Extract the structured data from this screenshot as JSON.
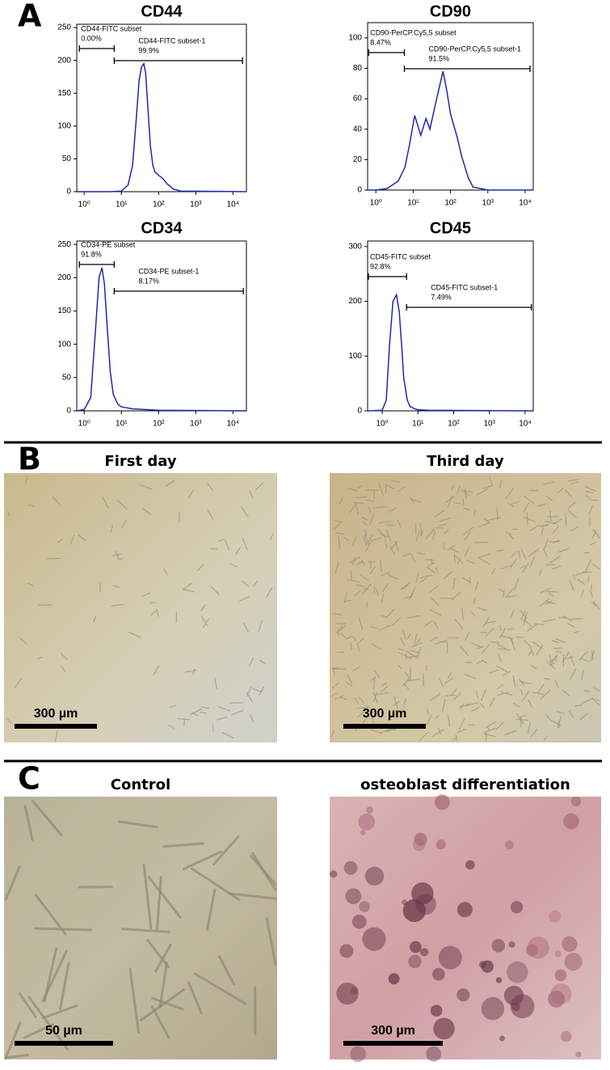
{
  "panel_labels": [
    "A",
    "B",
    "C"
  ],
  "chart_data": [
    {
      "type": "line",
      "title": "CD44",
      "xscale": "log",
      "color": "#1f2aa8",
      "x": [
        0.63,
        5,
        10,
        15,
        20,
        25,
        30,
        35,
        40,
        45,
        50,
        60,
        70,
        80,
        100,
        130,
        170,
        250,
        400,
        23000
      ],
      "values": [
        0,
        0,
        1,
        10,
        40,
        110,
        170,
        190,
        195,
        180,
        140,
        70,
        40,
        30,
        25,
        20,
        12,
        4,
        1,
        0
      ],
      "xlim": [
        0.63,
        23000
      ],
      "ylim": [
        0,
        255
      ],
      "xticks": [
        {
          "value": 1,
          "label": "10⁰"
        },
        {
          "value": 10,
          "label": "10¹"
        },
        {
          "value": 100,
          "label": "10²"
        },
        {
          "value": 1000,
          "label": "10³"
        },
        {
          "value": 10000,
          "label": "10⁴"
        }
      ],
      "yticks": [
        0,
        50,
        100,
        150,
        200,
        250
      ],
      "gates": [
        {
          "name": "CD44-FITC subset",
          "value": 0,
          "value_label": "0.00%",
          "range": [
            0.74,
            6.4
          ]
        },
        {
          "name": "CD44-FITC subset-1",
          "value": 99.9,
          "value_label": "99.9%",
          "range": [
            6.4,
            18000
          ]
        }
      ]
    },
    {
      "type": "line",
      "title": "CD90",
      "xscale": "log",
      "color": "#1f2aa8",
      "x": [
        0.6,
        1,
        2,
        4,
        6,
        8,
        11,
        16,
        22,
        28,
        40,
        63,
        80,
        100,
        150,
        200,
        300,
        400,
        1000,
        16500
      ],
      "values": [
        0,
        0,
        1,
        6,
        15,
        30,
        49,
        36,
        47,
        40,
        57,
        78,
        65,
        50,
        35,
        22,
        8,
        2,
        0,
        0
      ],
      "xlim": [
        0.6,
        16500
      ],
      "ylim": [
        0,
        110
      ],
      "xticks": [
        {
          "value": 1,
          "label": "10⁰"
        },
        {
          "value": 10,
          "label": "10¹"
        },
        {
          "value": 100,
          "label": "10²"
        },
        {
          "value": 1000,
          "label": "10³"
        },
        {
          "value": 10000,
          "label": "10⁴"
        }
      ],
      "yticks": [
        0,
        20,
        40,
        60,
        80,
        100
      ],
      "gates": [
        {
          "name": "CD90-PerCP.Cy5,5 subset",
          "value": 8.47,
          "value_label": "8.47%",
          "range": [
            0.64,
            5.8
          ]
        },
        {
          "name": "CD90-PerCP.Cy5,5 subset-1",
          "value": 91.5,
          "value_label": "91.5%",
          "range": [
            5.8,
            13500
          ]
        }
      ]
    },
    {
      "type": "line",
      "title": "CD34",
      "xscale": "log",
      "color": "#1f2aa8",
      "x": [
        0.63,
        1,
        1.5,
        2,
        2.5,
        3,
        3.5,
        4,
        5,
        6,
        8,
        10,
        20,
        100,
        23000
      ],
      "values": [
        0,
        2,
        20,
        120,
        200,
        215,
        190,
        140,
        60,
        25,
        10,
        6,
        3,
        1,
        0
      ],
      "xlim": [
        0.63,
        23000
      ],
      "ylim": [
        0,
        255
      ],
      "xticks": [
        {
          "value": 1,
          "label": "10⁰"
        },
        {
          "value": 10,
          "label": "10¹"
        },
        {
          "value": 100,
          "label": "10²"
        },
        {
          "value": 1000,
          "label": "10³"
        },
        {
          "value": 10000,
          "label": "10⁴"
        }
      ],
      "yticks": [
        0,
        50,
        100,
        150,
        200,
        250
      ],
      "gates": [
        {
          "name": "CD34-PE subset",
          "value": 91.8,
          "value_label": "91.8%",
          "range": [
            0.74,
            6.4
          ]
        },
        {
          "name": "CD34-PE subset-1",
          "value": 8.17,
          "value_label": "8.17%",
          "range": [
            6.4,
            19000
          ]
        }
      ]
    },
    {
      "type": "line",
      "title": "CD45",
      "xscale": "log",
      "color": "#1f2aa8",
      "x": [
        0.39,
        1,
        1.3,
        1.6,
        2,
        2.5,
        3,
        3.5,
        4,
        5,
        6,
        8,
        10,
        20,
        16900
      ],
      "values": [
        0,
        1,
        20,
        120,
        200,
        212,
        180,
        120,
        60,
        20,
        8,
        4,
        2,
        1,
        0
      ],
      "xlim": [
        0.39,
        16900
      ],
      "ylim": [
        0,
        310
      ],
      "xticks": [
        {
          "value": 1,
          "label": "10⁰"
        },
        {
          "value": 10,
          "label": "10¹"
        },
        {
          "value": 100,
          "label": "10²"
        },
        {
          "value": 1000,
          "label": "10³"
        },
        {
          "value": 10000,
          "label": "10⁴"
        }
      ],
      "yticks": [
        0,
        100,
        200,
        300
      ],
      "gates": [
        {
          "name": "CD45-FITC subset",
          "value": 92.8,
          "value_label": "92.8%",
          "range": [
            0.41,
            4.8
          ]
        },
        {
          "name": "CD45-FITC subset-1",
          "value": 7.49,
          "value_label": "7.49%",
          "range": [
            4.8,
            15000
          ]
        }
      ]
    }
  ],
  "images": [
    {
      "caption": "First day",
      "scale_bar": "300 µm"
    },
    {
      "caption": "Third day",
      "scale_bar": "300 µm"
    },
    {
      "caption": "Control",
      "scale_bar": "50 µm"
    },
    {
      "caption": "osteoblast differentiation",
      "scale_bar": "300 µm"
    }
  ]
}
